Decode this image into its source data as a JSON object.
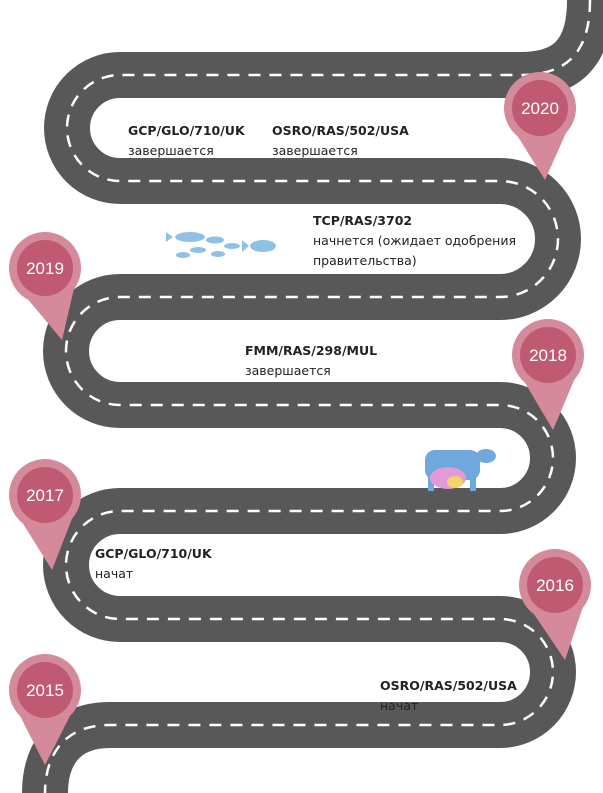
{
  "milestones": [
    {
      "year": "2020"
    },
    {
      "year": "2019"
    },
    {
      "year": "2018"
    },
    {
      "year": "2017"
    },
    {
      "year": "2016"
    },
    {
      "year": "2015"
    }
  ],
  "labels": [
    {
      "code": "GCP/GLO/710/UK",
      "status": [
        "завершается"
      ]
    },
    {
      "code": "OSRO/RAS/502/USA",
      "status": [
        "завершается"
      ]
    },
    {
      "code": "TCP/RAS/3702",
      "status": [
        "начнется (ожидает одобрения",
        "правительства)"
      ]
    },
    {
      "code": "FMM/RAS/298/MUL",
      "status": [
        "завершается"
      ]
    },
    {
      "code": "GCP/GLO/710/UK",
      "status": [
        "начат"
      ]
    },
    {
      "code": "OSRO/RAS/502/USA",
      "status": [
        "начат"
      ]
    }
  ]
}
